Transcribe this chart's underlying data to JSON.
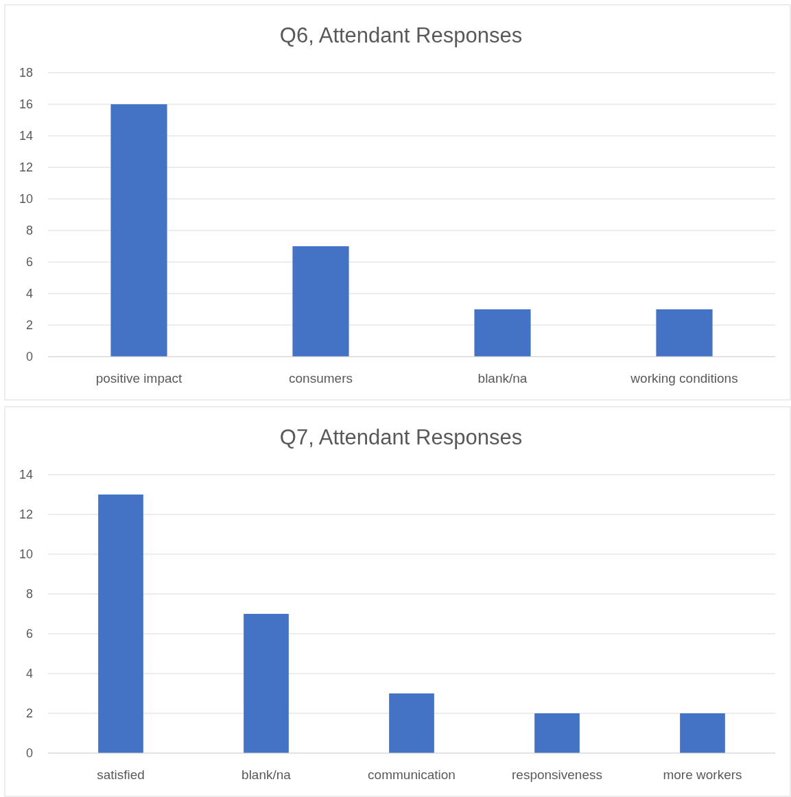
{
  "chart_data": [
    {
      "type": "bar",
      "title": "Q6, Attendant Responses",
      "categories": [
        "positive impact",
        "consumers",
        "blank/na",
        "working conditions"
      ],
      "values": [
        16,
        7,
        3,
        3
      ],
      "color": "#4472c4",
      "ylim": [
        0,
        18
      ],
      "yticks": [
        0,
        2,
        4,
        6,
        8,
        10,
        12,
        14,
        16,
        18
      ],
      "grid": "y"
    },
    {
      "type": "bar",
      "title": "Q7, Attendant Responses",
      "categories": [
        "satisfied",
        "blank/na",
        "communication",
        "responsiveness",
        "more workers"
      ],
      "values": [
        13,
        7,
        3,
        2,
        2
      ],
      "color": "#4472c4",
      "ylim": [
        0,
        14
      ],
      "yticks": [
        0,
        2,
        4,
        6,
        8,
        10,
        12,
        14
      ],
      "grid": "y"
    }
  ]
}
